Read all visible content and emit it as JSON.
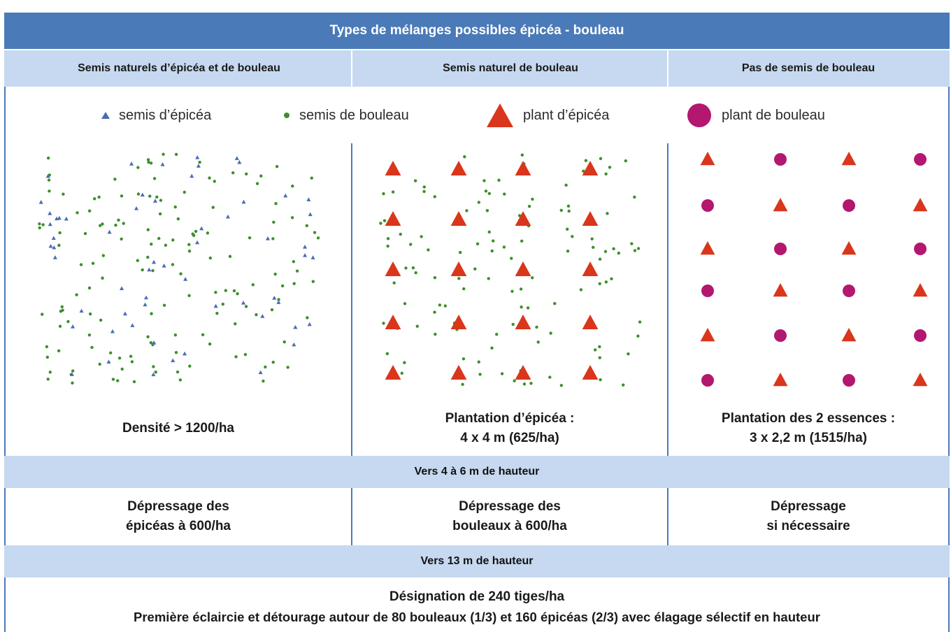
{
  "title": "Types de mélanges possibles épicéa - bouleau",
  "columns": [
    "Semis naturels d’épicéa et de bouleau",
    "Semis naturel de bouleau",
    "Pas de semis de bouleau"
  ],
  "legend": [
    {
      "label": "semis d’épicéa",
      "icon": "small-blue-triangle",
      "color": "#4a6cb3"
    },
    {
      "label": "semis de bouleau",
      "icon": "small-green-dot",
      "color": "#3d8f2a"
    },
    {
      "label": "plant d’épicéa",
      "icon": "large-red-triangle",
      "color": "#d9361c"
    },
    {
      "label": "plant de bouleau",
      "icon": "large-magenta-circle",
      "color": "#b3176f"
    }
  ],
  "captions": [
    {
      "line1": "Densité > 1200/ha",
      "line2": ""
    },
    {
      "line1": "Plantation d’épicéa :",
      "line2": "4 x 4 m (625/ha)"
    },
    {
      "line1": "Plantation des 2 essences :",
      "line2": "3 x 2,2 m (1515/ha)"
    }
  ],
  "stage1": {
    "label": "Vers 4 à 6 m de hauteur",
    "actions": [
      {
        "line1": "Dépressage des",
        "line2": "épicéas à 600/ha"
      },
      {
        "line1": "Dépressage des",
        "line2": "bouleaux à 600/ha"
      },
      {
        "line1": "Dépressage",
        "line2": "si nécessaire"
      }
    ]
  },
  "stage2": {
    "label": "Vers 13 m de hauteur",
    "line1": "Désignation de 240 tiges/ha",
    "line2": "Première éclaircie et détourage autour de 80 bouleaux (1/3) et 160 épicéas (2/3) avec élagage sélectif en hauteur"
  }
}
